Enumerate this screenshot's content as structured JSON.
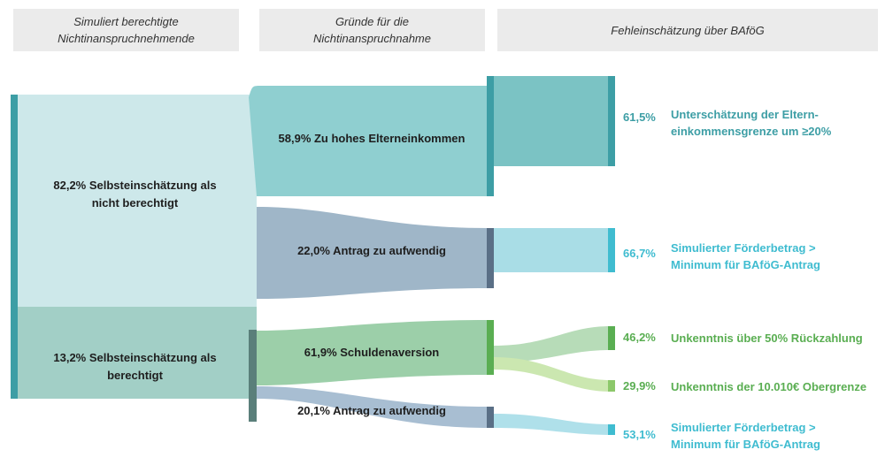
{
  "headers": {
    "col1": "Simuliert berechtigte\nNichtinanspruchnehmende",
    "col2": "Gründe für die\nNichtinanspruchnahme",
    "col3": "Fehleinschätzung über BAföG"
  },
  "nodes": {
    "not_eligible": "82,2% Selbsteinschätzung als\nnicht berechtigt",
    "eligible": "13,2% Selbsteinschätzung als\nberechtigt",
    "parent_income": "58,9% Zu hohes Elterneinkommen",
    "effort_1": "22,0% Antrag zu aufwendig",
    "debt_aversion": "61,9% Schuldenaversion",
    "effort_2": "20,1% Antrag zu aufwendig"
  },
  "outcomes": {
    "o1": {
      "pct": "61,5%",
      "text": "Unterschätzung der Eltern-\neinkommensgrenze um  ≥20%"
    },
    "o2": {
      "pct": "66,7%",
      "text": "Simulierter Förderbetrag >\nMinimum für BAföG-Antrag"
    },
    "o3": {
      "pct": "46,2%",
      "text": "Unkenntnis über 50% Rückzahlung"
    },
    "o4": {
      "pct": "29,9%",
      "text": "Unkenntnis der 10.010€ Obergrenze"
    },
    "o5": {
      "pct": "53,1%",
      "text": "Simulierter Förderbetrag >\nMinimum für BAföG-Antrag"
    }
  },
  "colors": {
    "teal": "#3d9ea5",
    "teal_light": "#cde8ea",
    "slate": "#5a6f86",
    "cyan": "#3fbcd0",
    "green": "#5aae52",
    "green_light": "#9fd18c"
  }
}
